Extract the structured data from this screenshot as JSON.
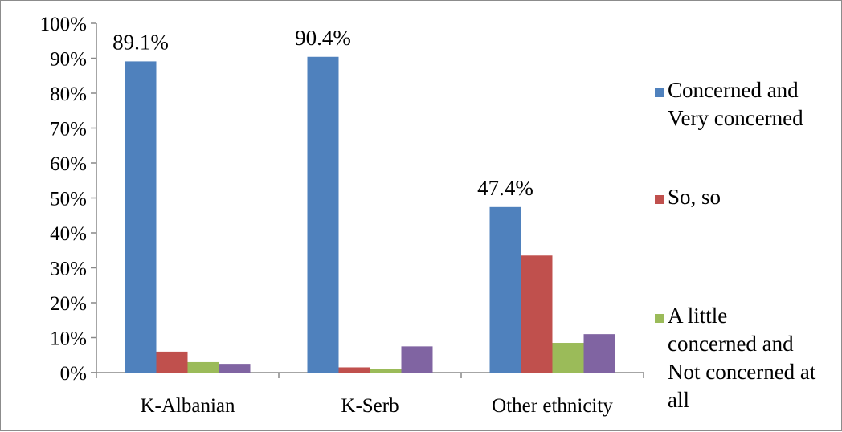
{
  "chart_data": {
    "type": "bar",
    "categories": [
      "K-Albanian",
      "K-Serb",
      "Other ethnicity"
    ],
    "series": [
      {
        "name": "Concerned and Very concerned",
        "values": [
          89.1,
          90.4,
          47.4
        ],
        "color": "#4f81bd",
        "legend_lines": [
          "Concerned and",
          "Very concerned"
        ]
      },
      {
        "name": "So, so",
        "values": [
          6,
          1.5,
          33.5
        ],
        "color": "#c0504d",
        "legend_lines": [
          "So, so"
        ]
      },
      {
        "name": "A little concerned and Not concerned at all",
        "values": [
          3,
          1,
          8.5
        ],
        "color": "#9bbb59",
        "legend_lines": [
          "A little",
          "concerned and",
          "Not concerned at",
          "all"
        ]
      },
      {
        "name": "",
        "values": [
          2.5,
          7.5,
          11
        ],
        "color": "#8064a2",
        "legend_lines": []
      }
    ],
    "data_labels": [
      {
        "series": 0,
        "category": 0,
        "text": "89.1%"
      },
      {
        "series": 0,
        "category": 1,
        "text": "90.4%"
      },
      {
        "series": 0,
        "category": 2,
        "text": "47.4%"
      }
    ],
    "y_ticks": [
      "0%",
      "10%",
      "20%",
      "30%",
      "40%",
      "50%",
      "60%",
      "70%",
      "80%",
      "90%",
      "100%"
    ],
    "ylim": [
      0,
      100
    ],
    "title": "",
    "xlabel": "",
    "ylabel": "",
    "grid": false,
    "legend_position": "right"
  }
}
